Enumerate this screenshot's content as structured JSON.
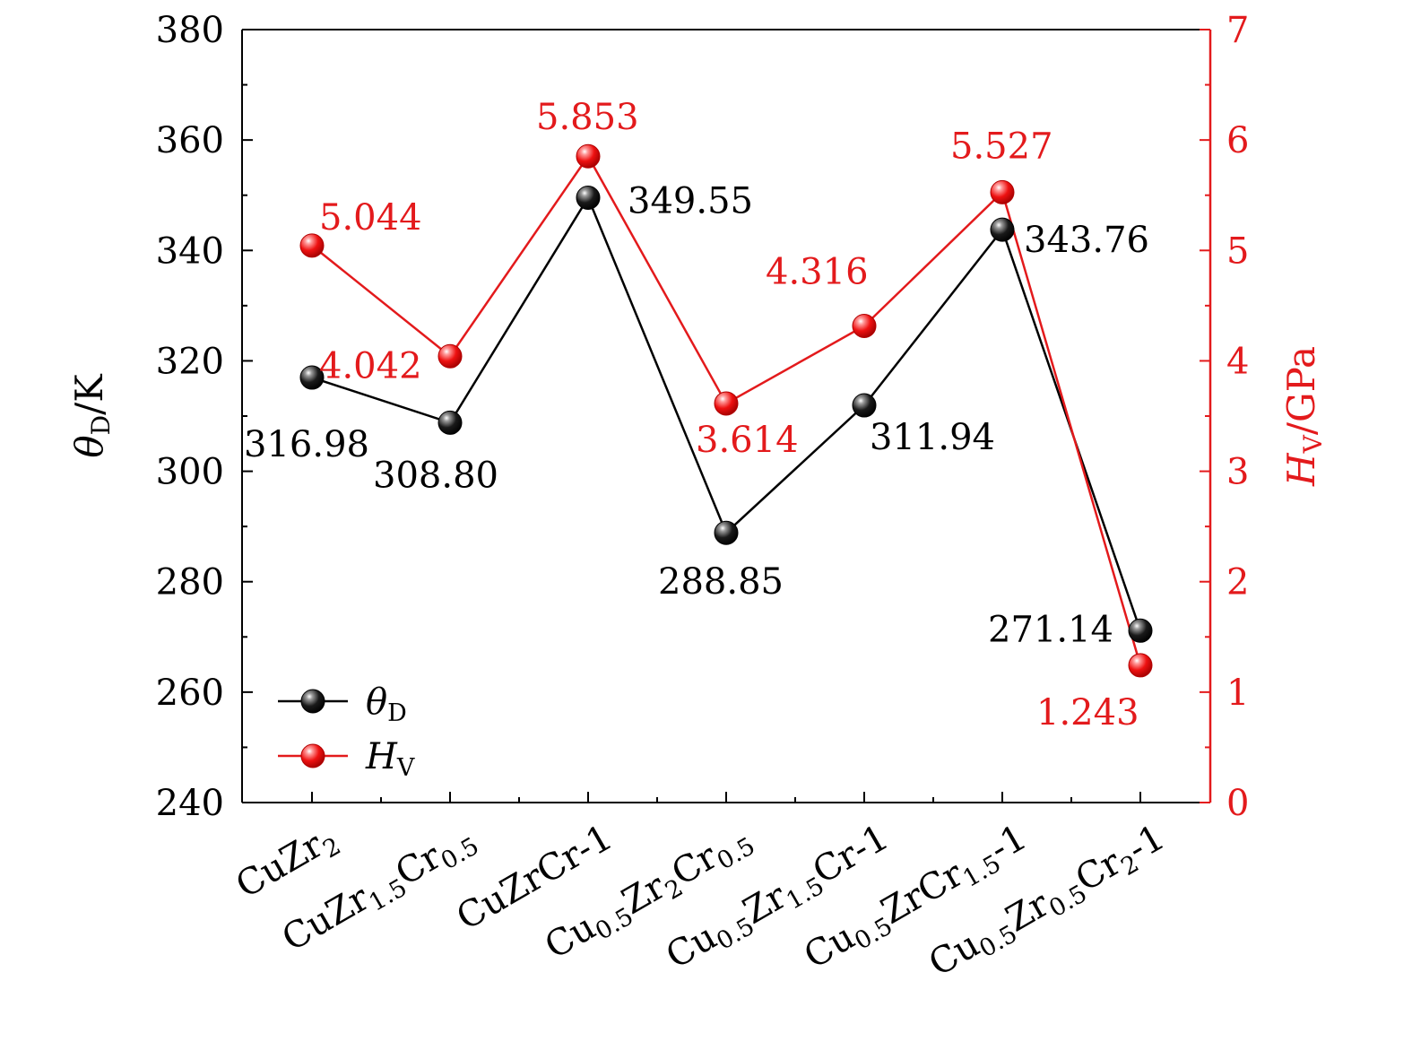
{
  "chart_data": {
    "type": "line",
    "categories": [
      {
        "base": "CuZr",
        "sub": "2",
        "suffix": ""
      },
      {
        "base": "CuZr",
        "sub": "1.5",
        "mid": "Cr",
        "sub2": "0.5",
        "suffix": ""
      },
      {
        "base": "CuZrCr-1",
        "sub": "",
        "suffix": ""
      },
      {
        "base": "Cu",
        "sub": "0.5",
        "mid": "Zr",
        "sub2": "2",
        "mid2": "Cr",
        "sub3": "0.5",
        "suffix": ""
      },
      {
        "base": "Cu",
        "sub": "0.5",
        "mid": "Zr",
        "sub2": "1.5",
        "mid2": "Cr-1",
        "sub3": "",
        "suffix": ""
      },
      {
        "base": "Cu",
        "sub": "0.5",
        "mid": "ZrCr",
        "sub2": "1.5",
        "mid2": "-1",
        "sub3": "",
        "suffix": ""
      },
      {
        "base": "Cu",
        "sub": "0.5",
        "mid": "Zr",
        "sub2": "0.5",
        "mid2": "Cr",
        "sub3": "2",
        "suffix": "-1"
      }
    ],
    "series": [
      {
        "name": "θ",
        "name_sub": "D",
        "axis": "left",
        "color": "#000000",
        "values": [
          316.98,
          308.8,
          349.55,
          288.85,
          311.94,
          343.76,
          271.14
        ],
        "labels": [
          "316.98",
          "308.80",
          "349.55",
          "288.85",
          "311.94",
          "343.76",
          "271.14"
        ]
      },
      {
        "name": "H",
        "name_sub": "V",
        "axis": "right",
        "color": "#e31a1c",
        "values": [
          5.044,
          4.042,
          5.853,
          3.614,
          4.316,
          5.527,
          1.243
        ],
        "labels": [
          "5.044",
          "4.042",
          "5.853",
          "3.614",
          "4.316",
          "5.527",
          "1.243"
        ]
      }
    ],
    "y_left": {
      "label_main": "θ",
      "label_sub": "D",
      "label_suffix": "/K",
      "lim": [
        240,
        380
      ],
      "ticks": [
        240,
        260,
        280,
        300,
        320,
        340,
        360,
        380
      ]
    },
    "y_right": {
      "label_main": "H",
      "label_sub": "V",
      "label_suffix": "/GPa",
      "lim": [
        0,
        7
      ],
      "ticks": [
        0,
        1,
        2,
        3,
        4,
        5,
        6,
        7
      ],
      "color": "#e31a1c"
    },
    "legend_position": "bottom-left",
    "grid": false
  }
}
